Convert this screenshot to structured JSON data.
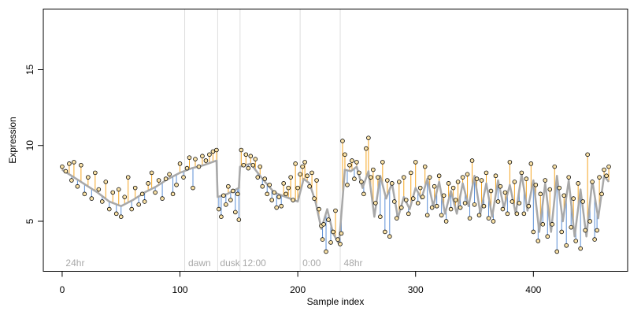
{
  "chart_data": {
    "type": "scatter",
    "title": "",
    "xlabel": "Sample index",
    "ylabel": "Expression",
    "xlim": [
      -16,
      480
    ],
    "ylim": [
      1.7,
      19.0
    ],
    "xticks": [
      0,
      100,
      200,
      300,
      400
    ],
    "yticks": [
      5,
      10,
      15
    ],
    "grid": false,
    "legend": "none",
    "colors": {
      "fitted_line": "#a8a8a8",
      "residual_above": "#f5a623",
      "residual_below": "#5b8fd6",
      "point_fill": "#fbe3a8",
      "point_edge": "#000000",
      "phase_divider": "#dddddd",
      "phase_label": "#a8a8a8"
    },
    "phase_boundaries": [
      104,
      132,
      151,
      202,
      236
    ],
    "phase_labels": [
      {
        "text": "24hr",
        "x": 3
      },
      {
        "text": "dawn",
        "x": 107
      },
      {
        "text": "dusk",
        "x": 134
      },
      {
        "text": "12:00",
        "x": 153
      },
      {
        "text": "0:00",
        "x": 204
      },
      {
        "text": "48hr",
        "x": 239
      }
    ],
    "fitted_series": [
      [
        0,
        8.4
      ],
      [
        10,
        7.9
      ],
      [
        20,
        7.4
      ],
      [
        30,
        6.9
      ],
      [
        40,
        6.3
      ],
      [
        50,
        6.0
      ],
      [
        60,
        6.4
      ],
      [
        70,
        6.9
      ],
      [
        80,
        7.3
      ],
      [
        90,
        7.8
      ],
      [
        100,
        8.2
      ],
      [
        110,
        8.5
      ],
      [
        120,
        8.7
      ],
      [
        131,
        9.0
      ],
      [
        132,
        6.6
      ],
      [
        140,
        6.8
      ],
      [
        150,
        7.2
      ],
      [
        151,
        8.6
      ],
      [
        160,
        8.8
      ],
      [
        170,
        7.8
      ],
      [
        180,
        6.9
      ],
      [
        190,
        6.6
      ],
      [
        200,
        6.3
      ],
      [
        205,
        7.8
      ],
      [
        210,
        7.5
      ],
      [
        215,
        6.3
      ],
      [
        220,
        4.5
      ],
      [
        225,
        5.8
      ],
      [
        230,
        4.2
      ],
      [
        235,
        3.5
      ],
      [
        240,
        8.4
      ],
      [
        245,
        8.3
      ],
      [
        250,
        8.6
      ],
      [
        255,
        7.2
      ],
      [
        260,
        8.3
      ],
      [
        265,
        5.3
      ],
      [
        270,
        8.0
      ],
      [
        275,
        6.5
      ],
      [
        280,
        7.5
      ],
      [
        285,
        5.2
      ],
      [
        290,
        6.6
      ],
      [
        295,
        5.8
      ],
      [
        300,
        7.2
      ],
      [
        305,
        6.5
      ],
      [
        310,
        7.8
      ],
      [
        315,
        6.0
      ],
      [
        320,
        7.6
      ],
      [
        325,
        5.5
      ],
      [
        330,
        7.0
      ],
      [
        335,
        5.5
      ],
      [
        340,
        7.5
      ],
      [
        345,
        6.0
      ],
      [
        350,
        8.0
      ],
      [
        355,
        5.5
      ],
      [
        360,
        7.5
      ],
      [
        365,
        5.3
      ],
      [
        370,
        7.7
      ],
      [
        375,
        5.9
      ],
      [
        380,
        7.4
      ],
      [
        385,
        5.5
      ],
      [
        390,
        8.1
      ],
      [
        395,
        5.7
      ],
      [
        400,
        7.7
      ],
      [
        405,
        4.3
      ],
      [
        410,
        7.5
      ],
      [
        415,
        4.3
      ],
      [
        420,
        8.0
      ],
      [
        425,
        5.0
      ],
      [
        430,
        7.7
      ],
      [
        435,
        4.0
      ],
      [
        440,
        7.1
      ],
      [
        445,
        4.0
      ],
      [
        450,
        7.7
      ],
      [
        455,
        5.2
      ],
      [
        460,
        8.0
      ],
      [
        464,
        7.6
      ]
    ],
    "points": [
      [
        0,
        8.6
      ],
      [
        3,
        8.3
      ],
      [
        6,
        8.8
      ],
      [
        8,
        7.7
      ],
      [
        10,
        8.9
      ],
      [
        13,
        7.3
      ],
      [
        16,
        8.7
      ],
      [
        19,
        6.8
      ],
      [
        22,
        7.9
      ],
      [
        25,
        6.5
      ],
      [
        28,
        8.2
      ],
      [
        31,
        7.1
      ],
      [
        34,
        6.3
      ],
      [
        37,
        7.6
      ],
      [
        40,
        5.8
      ],
      [
        43,
        6.9
      ],
      [
        46,
        5.5
      ],
      [
        48,
        7.1
      ],
      [
        50,
        5.3
      ],
      [
        53,
        6.6
      ],
      [
        56,
        7.9
      ],
      [
        59,
        5.8
      ],
      [
        62,
        7.2
      ],
      [
        65,
        6.1
      ],
      [
        68,
        6.8
      ],
      [
        70,
        6.3
      ],
      [
        73,
        7.5
      ],
      [
        76,
        8.2
      ],
      [
        79,
        6.9
      ],
      [
        82,
        7.7
      ],
      [
        85,
        6.5
      ],
      [
        88,
        7.8
      ],
      [
        91,
        8.1
      ],
      [
        94,
        6.8
      ],
      [
        97,
        7.4
      ],
      [
        100,
        8.8
      ],
      [
        103,
        7.9
      ],
      [
        106,
        8.5
      ],
      [
        108,
        9.2
      ],
      [
        111,
        7.2
      ],
      [
        113,
        9.1
      ],
      [
        116,
        8.6
      ],
      [
        119,
        9.3
      ],
      [
        122,
        9.0
      ],
      [
        125,
        9.4
      ],
      [
        128,
        9.6
      ],
      [
        131,
        9.7
      ],
      [
        133,
        5.8
      ],
      [
        135,
        5.3
      ],
      [
        137,
        6.7
      ],
      [
        139,
        6.1
      ],
      [
        141,
        7.3
      ],
      [
        143,
        6.4
      ],
      [
        145,
        7.0
      ],
      [
        147,
        5.6
      ],
      [
        149,
        6.8
      ],
      [
        150,
        5.1
      ],
      [
        152,
        9.7
      ],
      [
        154,
        8.7
      ],
      [
        156,
        9.4
      ],
      [
        158,
        8.5
      ],
      [
        160,
        9.3
      ],
      [
        162,
        8.7
      ],
      [
        164,
        9.1
      ],
      [
        166,
        7.9
      ],
      [
        168,
        8.6
      ],
      [
        170,
        7.3
      ],
      [
        172,
        7.8
      ],
      [
        174,
        6.8
      ],
      [
        176,
        7.4
      ],
      [
        178,
        6.4
      ],
      [
        180,
        6.9
      ],
      [
        182,
        5.9
      ],
      [
        184,
        6.6
      ],
      [
        186,
        6.0
      ],
      [
        188,
        7.5
      ],
      [
        190,
        6.8
      ],
      [
        192,
        7.2
      ],
      [
        194,
        7.9
      ],
      [
        196,
        6.4
      ],
      [
        198,
        8.8
      ],
      [
        200,
        7.2
      ],
      [
        202,
        8.1
      ],
      [
        204,
        8.6
      ],
      [
        206,
        8.9
      ],
      [
        208,
        8.0
      ],
      [
        210,
        7.3
      ],
      [
        212,
        8.2
      ],
      [
        214,
        6.5
      ],
      [
        216,
        7.7
      ],
      [
        218,
        5.8
      ],
      [
        220,
        4.7
      ],
      [
        221,
        3.8
      ],
      [
        222,
        4.8
      ],
      [
        224,
        3.0
      ],
      [
        226,
        5.1
      ],
      [
        228,
        3.6
      ],
      [
        230,
        4.3
      ],
      [
        232,
        5.7
      ],
      [
        234,
        3.8
      ],
      [
        236,
        3.5
      ],
      [
        237,
        4.2
      ],
      [
        238,
        10.3
      ],
      [
        240,
        9.4
      ],
      [
        242,
        7.4
      ],
      [
        244,
        8.7
      ],
      [
        246,
        9.0
      ],
      [
        248,
        7.8
      ],
      [
        250,
        8.9
      ],
      [
        252,
        8.2
      ],
      [
        254,
        7.6
      ],
      [
        256,
        6.8
      ],
      [
        258,
        9.8
      ],
      [
        260,
        10.5
      ],
      [
        262,
        7.9
      ],
      [
        264,
        8.4
      ],
      [
        266,
        6.2
      ],
      [
        268,
        7.9
      ],
      [
        270,
        5.3
      ],
      [
        272,
        8.9
      ],
      [
        274,
        4.3
      ],
      [
        276,
        7.7
      ],
      [
        278,
        4.0
      ],
      [
        280,
        7.5
      ],
      [
        282,
        6.3
      ],
      [
        284,
        5.2
      ],
      [
        286,
        7.6
      ],
      [
        288,
        5.9
      ],
      [
        290,
        7.9
      ],
      [
        292,
        6.4
      ],
      [
        294,
        5.5
      ],
      [
        296,
        8.2
      ],
      [
        298,
        6.5
      ],
      [
        300,
        8.9
      ],
      [
        302,
        6.2
      ],
      [
        304,
        7.2
      ],
      [
        306,
        6.6
      ],
      [
        308,
        8.6
      ],
      [
        310,
        5.4
      ],
      [
        312,
        7.9
      ],
      [
        314,
        5.9
      ],
      [
        316,
        7.3
      ],
      [
        318,
        6.0
      ],
      [
        320,
        8.0
      ],
      [
        322,
        5.4
      ],
      [
        324,
        6.7
      ],
      [
        326,
        5.0
      ],
      [
        328,
        7.5
      ],
      [
        330,
        5.8
      ],
      [
        332,
        7.2
      ],
      [
        334,
        6.4
      ],
      [
        336,
        7.6
      ],
      [
        338,
        5.9
      ],
      [
        340,
        7.9
      ],
      [
        342,
        6.2
      ],
      [
        344,
        8.1
      ],
      [
        346,
        5.2
      ],
      [
        348,
        9.0
      ],
      [
        350,
        6.1
      ],
      [
        352,
        7.8
      ],
      [
        354,
        5.4
      ],
      [
        356,
        7.7
      ],
      [
        358,
        6.0
      ],
      [
        360,
        8.2
      ],
      [
        362,
        5.2
      ],
      [
        364,
        7.0
      ],
      [
        366,
        5.0
      ],
      [
        368,
        8.0
      ],
      [
        370,
        6.3
      ],
      [
        372,
        7.3
      ],
      [
        374,
        5.8
      ],
      [
        376,
        6.9
      ],
      [
        378,
        5.5
      ],
      [
        380,
        8.9
      ],
      [
        382,
        6.3
      ],
      [
        384,
        7.6
      ],
      [
        386,
        5.5
      ],
      [
        388,
        6.2
      ],
      [
        390,
        8.2
      ],
      [
        392,
        5.5
      ],
      [
        394,
        7.8
      ],
      [
        396,
        6.0
      ],
      [
        398,
        8.8
      ],
      [
        400,
        4.3
      ],
      [
        402,
        7.4
      ],
      [
        404,
        3.7
      ],
      [
        406,
        6.8
      ],
      [
        408,
        4.8
      ],
      [
        410,
        7.7
      ],
      [
        412,
        4.0
      ],
      [
        414,
        7.1
      ],
      [
        416,
        4.8
      ],
      [
        418,
        8.6
      ],
      [
        420,
        3.0
      ],
      [
        422,
        7.2
      ],
      [
        424,
        4.3
      ],
      [
        426,
        6.7
      ],
      [
        428,
        3.4
      ],
      [
        430,
        7.9
      ],
      [
        432,
        4.6
      ],
      [
        434,
        6.5
      ],
      [
        436,
        3.7
      ],
      [
        438,
        7.5
      ],
      [
        440,
        3.2
      ],
      [
        442,
        6.3
      ],
      [
        444,
        4.4
      ],
      [
        446,
        9.4
      ],
      [
        448,
        5.0
      ],
      [
        450,
        7.6
      ],
      [
        452,
        3.8
      ],
      [
        454,
        4.4
      ],
      [
        456,
        7.9
      ],
      [
        458,
        6.8
      ],
      [
        460,
        8.4
      ],
      [
        462,
        8.0
      ],
      [
        464,
        8.6
      ]
    ]
  }
}
